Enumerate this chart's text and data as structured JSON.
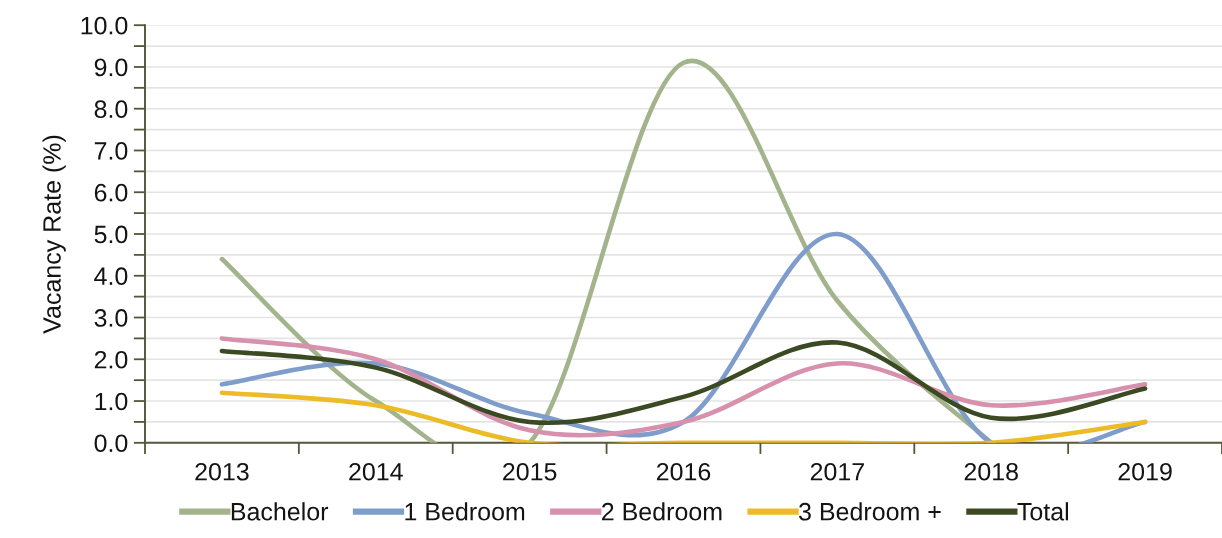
{
  "chart_data": {
    "type": "line",
    "ylabel": "Vacancy Rate (%)",
    "categories": [
      "2013",
      "2014",
      "2015",
      "2016",
      "2017",
      "2018",
      "2019"
    ],
    "series": [
      {
        "name": "Bachelor",
        "color": "#a3b38c",
        "values": [
          4.4,
          1.0,
          0.0,
          9.1,
          3.4,
          0.0,
          null
        ]
      },
      {
        "name": "1 Bedroom",
        "color": "#7f9dca",
        "values": [
          1.4,
          1.9,
          0.7,
          0.5,
          5.0,
          0.0,
          0.5
        ]
      },
      {
        "name": "2 Bedroom",
        "color": "#d791ad",
        "values": [
          2.5,
          2.0,
          0.3,
          0.5,
          1.9,
          0.9,
          1.4
        ]
      },
      {
        "name": "3 Bedroom +",
        "color": "#ecbb26",
        "values": [
          1.2,
          0.9,
          0.0,
          0.0,
          0.0,
          0.0,
          0.5
        ]
      },
      {
        "name": "Total",
        "color": "#3c4a23",
        "values": [
          2.2,
          1.8,
          0.5,
          1.1,
          2.4,
          0.6,
          1.3
        ]
      }
    ],
    "ylim": [
      0,
      10
    ],
    "yticks": [
      {
        "value": 0,
        "label": "0.0"
      },
      {
        "value": 0.5,
        "label": null
      },
      {
        "value": 1,
        "label": "1.0"
      },
      {
        "value": 1.5,
        "label": null
      },
      {
        "value": 2,
        "label": "2.0"
      },
      {
        "value": 2.5,
        "label": null
      },
      {
        "value": 3,
        "label": "3.0"
      },
      {
        "value": 3.5,
        "label": null
      },
      {
        "value": 4,
        "label": "4.0"
      },
      {
        "value": 4.5,
        "label": null
      },
      {
        "value": 5,
        "label": "5.0"
      },
      {
        "value": 5.5,
        "label": null
      },
      {
        "value": 6,
        "label": "6.0"
      },
      {
        "value": 6.5,
        "label": null
      },
      {
        "value": 7,
        "label": "7.0"
      },
      {
        "value": 7.5,
        "label": null
      },
      {
        "value": 8,
        "label": "8.0"
      },
      {
        "value": 8.5,
        "label": null
      },
      {
        "value": 9,
        "label": "9.0"
      },
      {
        "value": 9.5,
        "label": null
      },
      {
        "value": 10,
        "label": "10.0"
      }
    ],
    "grid": "y",
    "legend": "bottom",
    "line_style": "solid"
  }
}
